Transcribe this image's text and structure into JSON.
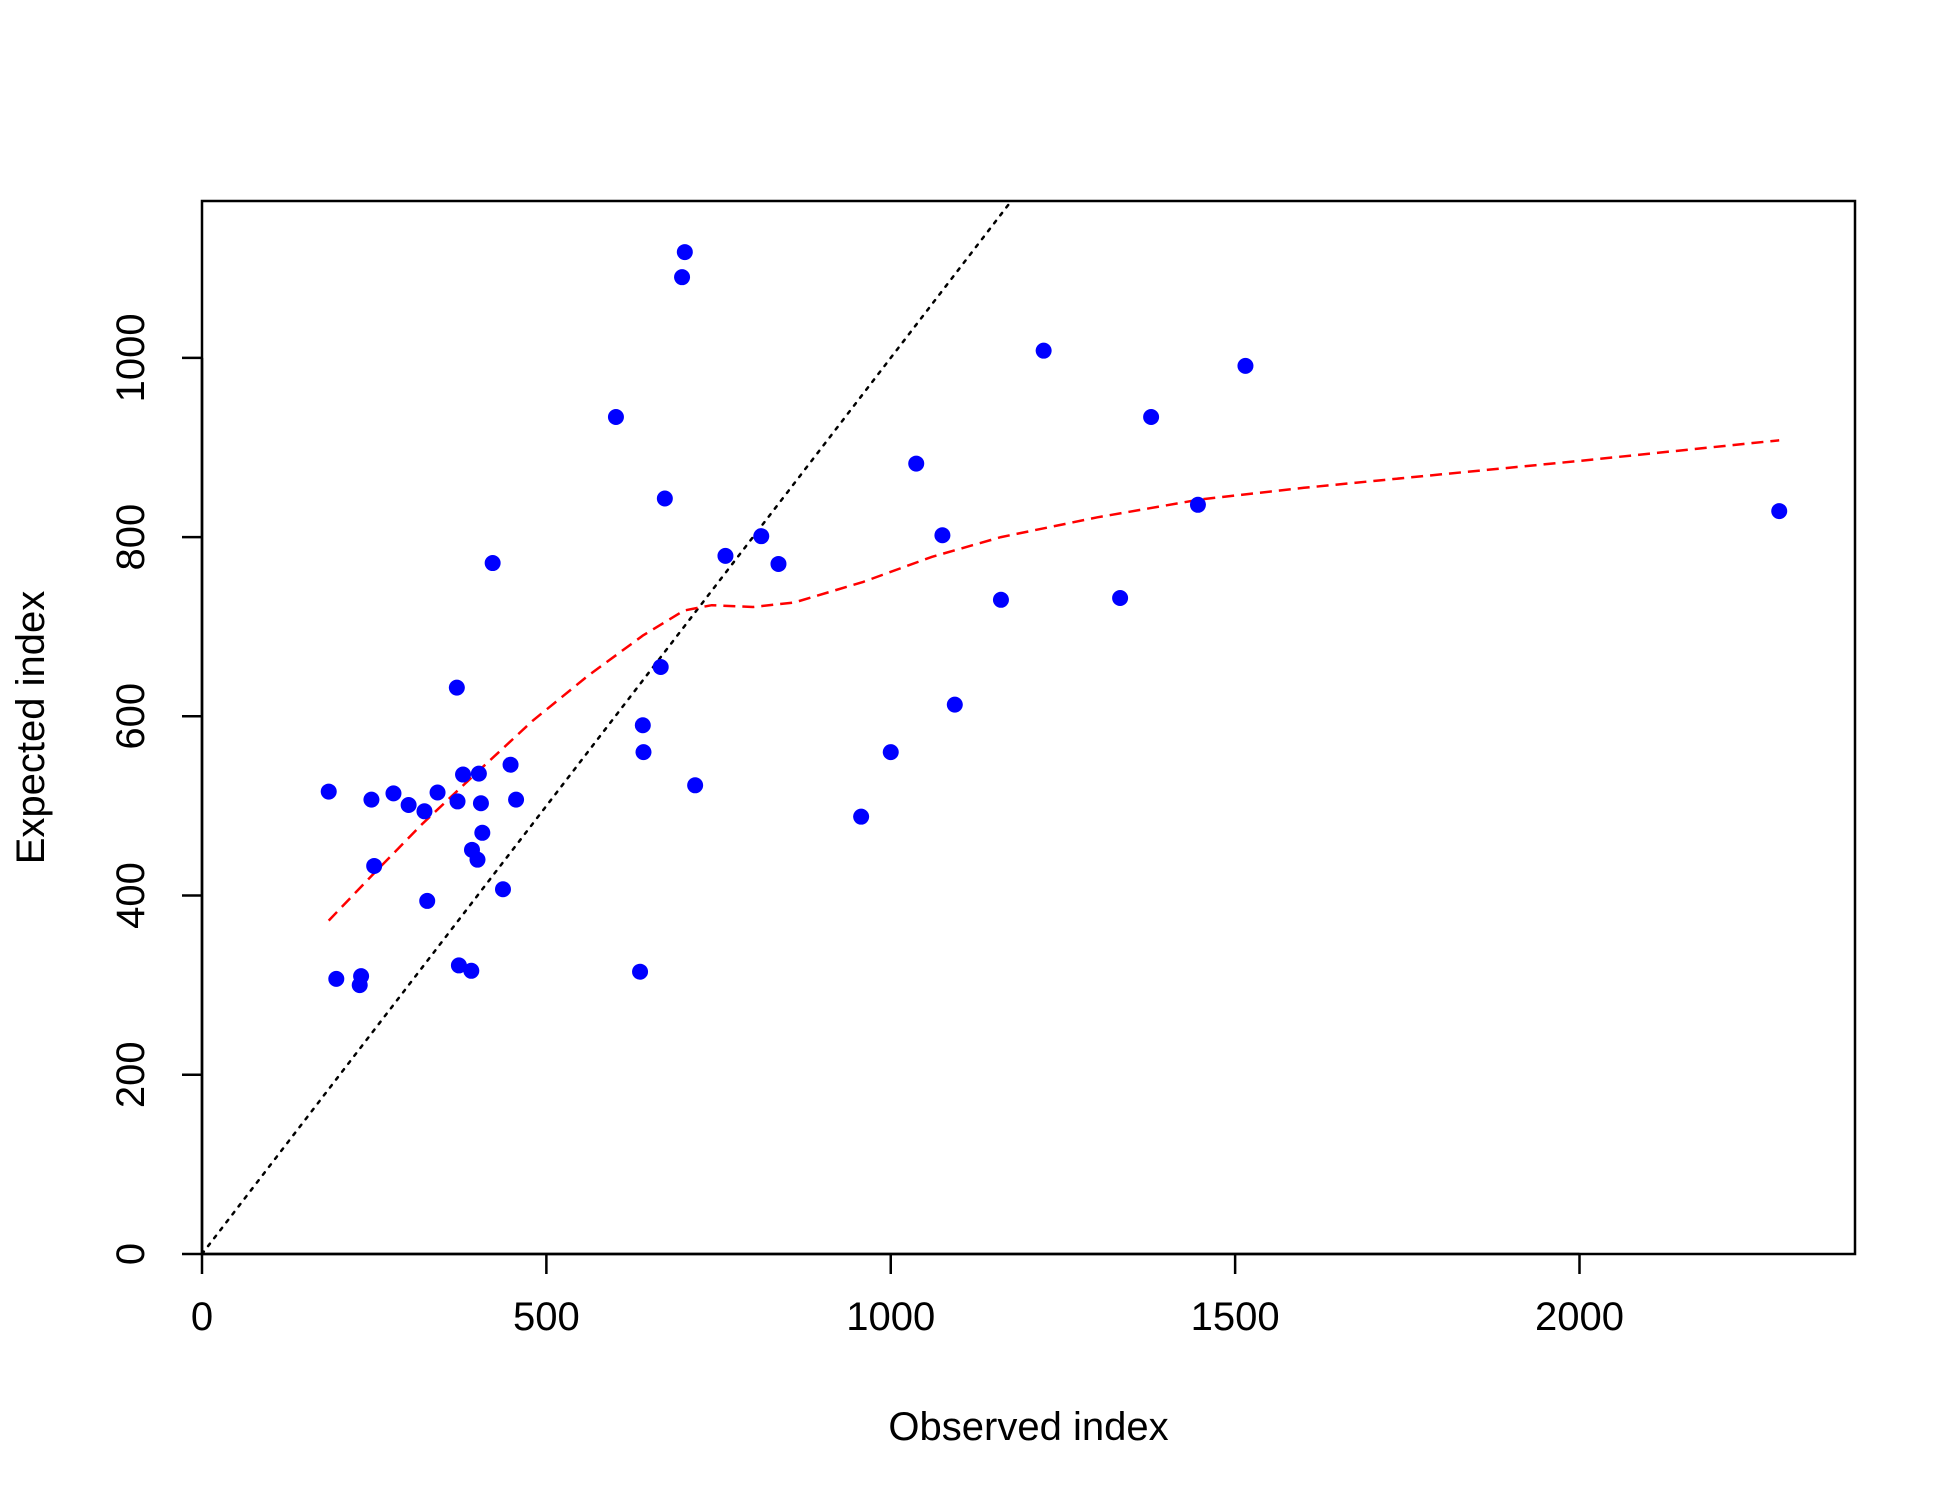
{
  "chart_data": {
    "type": "scatter",
    "title": "",
    "xlabel": "Observed index",
    "ylabel": "Expected index",
    "xlim": [
      0,
      2400
    ],
    "ylim": [
      0,
      1175
    ],
    "xticks": [
      0,
      500,
      1000,
      1500,
      2000
    ],
    "yticks": [
      0,
      200,
      400,
      600,
      800,
      1000
    ],
    "xtick_labels": [
      "0",
      "500",
      "1000",
      "1500",
      "2000"
    ],
    "ytick_labels": [
      "0",
      "200",
      "400",
      "600",
      "800",
      "1000"
    ],
    "grid": false,
    "legend": "none",
    "points": {
      "color": "#0000ff",
      "x": [
        184,
        195,
        229,
        231,
        246,
        250,
        278,
        300,
        323,
        327,
        342,
        370,
        371,
        373,
        379,
        391,
        392,
        400,
        402,
        405,
        407,
        422,
        437,
        448,
        456,
        601,
        636,
        640,
        641,
        666,
        672,
        697,
        701,
        716,
        760,
        812,
        837,
        957,
        1000,
        1037,
        1075,
        1093,
        1160,
        1222,
        1333,
        1378,
        1446,
        1515,
        2290
      ],
      "y": [
        516,
        307,
        300,
        310,
        507,
        433,
        514,
        501,
        494,
        394,
        515,
        632,
        505,
        322,
        535,
        316,
        451,
        440,
        536,
        503,
        470,
        771,
        407,
        546,
        507,
        934,
        315,
        590,
        560,
        655,
        843,
        1090,
        1118,
        523,
        779,
        801,
        770,
        488,
        560,
        882,
        802,
        613,
        730,
        1008,
        732,
        934,
        836,
        991,
        829
      ]
    },
    "reference_line": {
      "style": "dotted",
      "color": "#000000",
      "slope": 1,
      "intercept": 0
    },
    "smooth_line": {
      "style": "dashed",
      "color": "#ff0000",
      "x": [
        184,
        250,
        320,
        400,
        480,
        560,
        640,
        700,
        740,
        800,
        860,
        960,
        1060,
        1160,
        1300,
        1450,
        1600,
        1800,
        2000,
        2290
      ],
      "y": [
        372,
        425,
        480,
        538,
        595,
        645,
        690,
        718,
        724,
        722,
        727,
        750,
        778,
        800,
        822,
        842,
        855,
        870,
        885,
        908
      ]
    }
  }
}
